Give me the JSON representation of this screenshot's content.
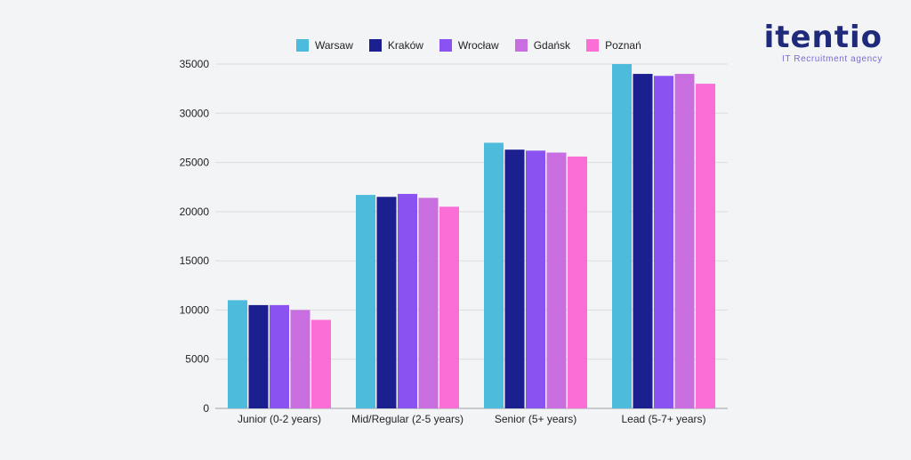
{
  "logo": {
    "word": "itentio",
    "tagline": "IT Recruitment agency"
  },
  "colors": {
    "Warsaw": "#4cbbdc",
    "Kraków": "#1b1f8f",
    "Wrocław": "#8b52f2",
    "Gdańsk": "#c86ee0",
    "Poznań": "#fb6ed6"
  },
  "chart_data": {
    "type": "bar",
    "title": "",
    "xlabel": "",
    "ylabel": "",
    "ylim": [
      0,
      35000
    ],
    "yticks": [
      0,
      5000,
      10000,
      15000,
      20000,
      25000,
      30000,
      35000
    ],
    "grid": true,
    "legend_position": "top",
    "categories": [
      "Junior (0-2 years)",
      "Mid/Regular (2-5 years)",
      "Senior (5+ years)",
      "Lead (5-7+ years)"
    ],
    "series": [
      {
        "name": "Warsaw",
        "values": [
          11000,
          21700,
          27000,
          35000
        ]
      },
      {
        "name": "Kraków",
        "values": [
          10500,
          21500,
          26300,
          34000
        ]
      },
      {
        "name": "Wrocław",
        "values": [
          10500,
          21800,
          26200,
          33800
        ]
      },
      {
        "name": "Gdańsk",
        "values": [
          10000,
          21400,
          26000,
          34000
        ]
      },
      {
        "name": "Poznań",
        "values": [
          9000,
          20500,
          25600,
          33000
        ]
      }
    ]
  }
}
